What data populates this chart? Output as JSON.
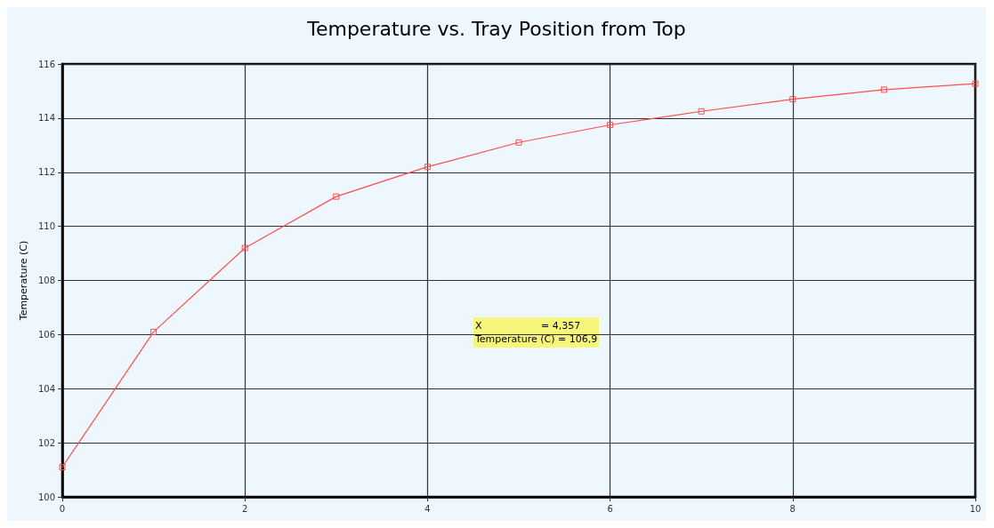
{
  "chart_data": {
    "type": "line",
    "title": "Temperature vs. Tray Position from Top",
    "ylabel": "Temperature (C)",
    "x": [
      0,
      1,
      2,
      3,
      4,
      5,
      6,
      7,
      8,
      9,
      10
    ],
    "series": [
      {
        "color": "#ff4d4d",
        "values": [
          101.1,
          106.1,
          109.2,
          111.1,
          112.2,
          113.1,
          113.75,
          114.25,
          114.7,
          115.05,
          115.27
        ]
      }
    ],
    "xlim": [
      0,
      10
    ],
    "xticks": [
      0,
      2,
      4,
      6,
      8,
      10
    ],
    "ylim": [
      100,
      116
    ],
    "yticks": [
      100,
      102,
      104,
      106,
      108,
      110,
      112,
      114,
      116
    ],
    "grid": true,
    "marker": "square",
    "line_style": "solid",
    "annotations": [
      "X                   = 4,357",
      "Temperature (C) = 106,9"
    ]
  }
}
